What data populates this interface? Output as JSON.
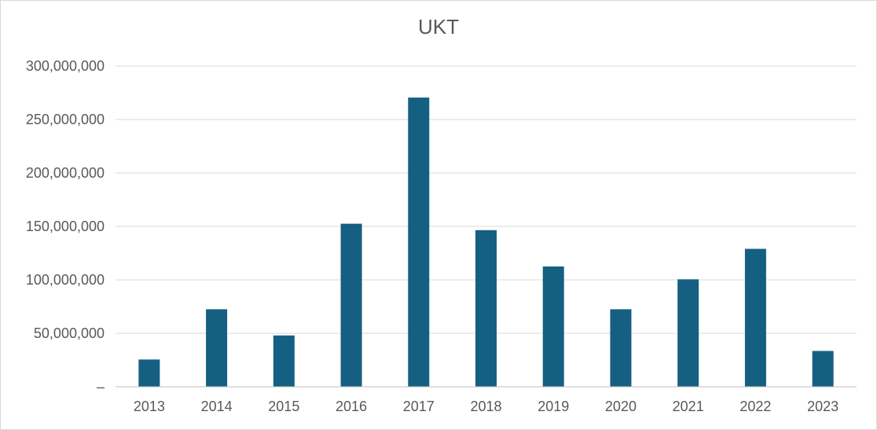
{
  "chart_data": {
    "type": "bar",
    "title": "UKT",
    "xlabel": "",
    "ylabel": "",
    "categories": [
      "2013",
      "2014",
      "2015",
      "2016",
      "2017",
      "2018",
      "2019",
      "2020",
      "2021",
      "2022",
      "2023"
    ],
    "values": [
      25500000,
      72500000,
      48000000,
      152500000,
      270500000,
      146500000,
      112500000,
      72500000,
      100500000,
      129000000,
      33500000
    ],
    "ylim": [
      0,
      300000000
    ],
    "yticks": [
      0,
      50000000,
      100000000,
      150000000,
      200000000,
      250000000,
      300000000
    ],
    "ytick_labels": [
      "–",
      "50,000,000",
      "100,000,000",
      "150,000,000",
      "200,000,000",
      "250,000,000",
      "300,000,000"
    ],
    "bar_color": "#156082",
    "grid": true,
    "legend": "none"
  }
}
